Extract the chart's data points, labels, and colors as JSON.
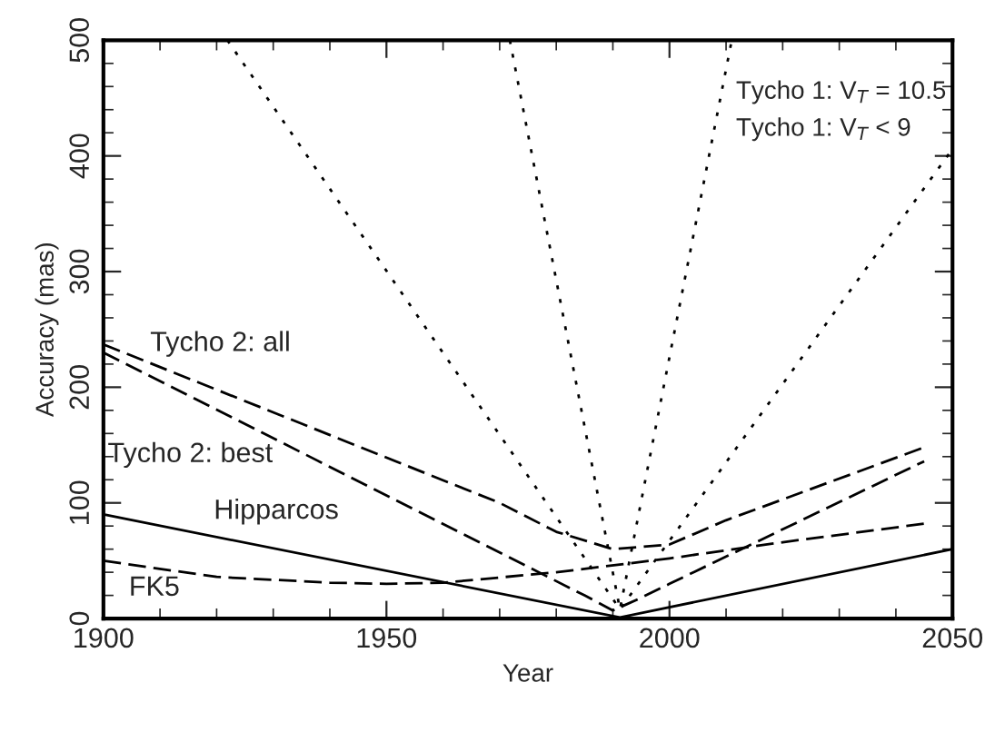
{
  "chart_data": {
    "type": "line",
    "xlabel": "Year",
    "ylabel": "Accuracy (mas)",
    "xlim": [
      1900,
      2050
    ],
    "xticks": [
      1900,
      1950,
      2000,
      2050
    ],
    "ylim": [
      0,
      500
    ],
    "yticks": [
      0,
      100,
      200,
      300,
      400,
      500
    ],
    "grid": false,
    "marker": "none",
    "series": [
      {
        "name": "Hipparcos",
        "color": "#000000",
        "line_style": "solid",
        "x": [
          1900,
          1991.25,
          2050
        ],
        "values": [
          90,
          1,
          60
        ]
      },
      {
        "color": "#000000",
        "line_style": "dotted",
        "x": [
          1921.9,
          1991.25,
          2050
        ],
        "values": [
          500,
          8,
          406
        ]
      },
      {
        "color": "#000000",
        "line_style": "dotted",
        "x": [
          1971.8,
          1991.25,
          2011
        ],
        "values": [
          500,
          8,
          500
        ]
      },
      {
        "name": "Tycho 2: all",
        "color": "#000000",
        "line_style": "dashed",
        "x": [
          1900,
          1970,
          1980,
          1990,
          2000,
          2010,
          2045
        ],
        "values": [
          237,
          100,
          75,
          60,
          64,
          85,
          148
        ]
      },
      {
        "name": "Tycho 2: best",
        "color": "#000000",
        "line_style": "dashed",
        "x": [
          1900,
          1985,
          1990,
          1995,
          2000,
          2045
        ],
        "values": [
          230,
          20,
          7,
          18,
          30,
          136
        ]
      },
      {
        "name": "FK5",
        "color": "#000000",
        "line_style": "dashed",
        "x": [
          1900,
          1920,
          1940,
          1950,
          1960,
          1980,
          2000,
          2020,
          2045
        ],
        "values": [
          50,
          36,
          31,
          30,
          31,
          40,
          52,
          66,
          82
        ]
      }
    ],
    "annotations": [
      "Tycho 1: V$_{T}$ = 10.5",
      "Tycho 1: V$_{T}$ < 9"
    ]
  }
}
